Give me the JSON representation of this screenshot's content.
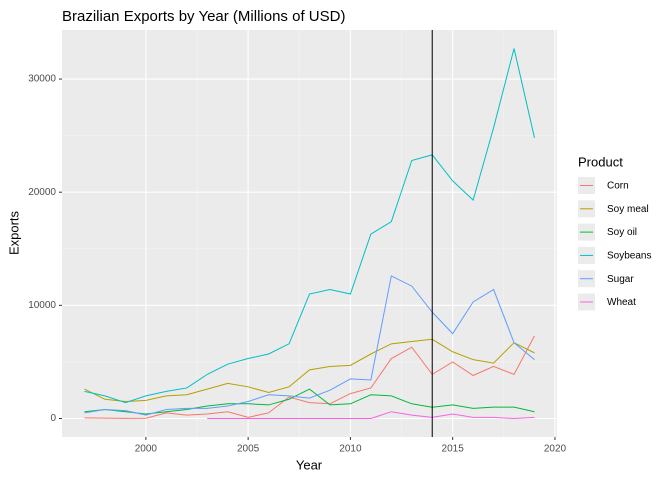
{
  "chart_data": {
    "type": "line",
    "title": "Brazilian Exports by Year (Millions of USD)",
    "x_label": "Year",
    "y_label": "Exports",
    "legend_title": "Product",
    "x": [
      1997,
      1998,
      1999,
      2000,
      2001,
      2002,
      2003,
      2004,
      2005,
      2006,
      2007,
      2008,
      2009,
      2010,
      2011,
      2012,
      2013,
      2014,
      2015,
      2016,
      2017,
      2018,
      2019
    ],
    "series": [
      {
        "name": "Corn",
        "color": "#F8766D",
        "values": [
          50,
          30,
          10,
          20,
          500,
          300,
          400,
          600,
          100,
          500,
          1900,
          1400,
          1300,
          2200,
          2700,
          5300,
          6300,
          3900,
          5000,
          3800,
          4600,
          3900,
          7300
        ]
      },
      {
        "name": "Soy meal",
        "color": "#B79F00",
        "values": [
          2600,
          1700,
          1500,
          1600,
          2000,
          2100,
          2600,
          3100,
          2800,
          2300,
          2800,
          4300,
          4600,
          4700,
          5700,
          6600,
          6800,
          7000,
          5900,
          5200,
          4900,
          6700,
          5800
        ]
      },
      {
        "name": "Soy oil",
        "color": "#00BA38",
        "values": [
          600,
          800,
          600,
          400,
          600,
          800,
          1100,
          1300,
          1300,
          1200,
          1700,
          2600,
          1200,
          1300,
          2100,
          2000,
          1300,
          1000,
          1200,
          900,
          1000,
          1000,
          600
        ]
      },
      {
        "name": "Soybeans",
        "color": "#00BFC4",
        "values": [
          2400,
          2000,
          1400,
          2000,
          2400,
          2700,
          3900,
          4800,
          5300,
          5700,
          6600,
          11000,
          11400,
          11000,
          16300,
          17400,
          22800,
          23300,
          21000,
          19300,
          25700,
          32700,
          24800
        ]
      },
      {
        "name": "Sugar",
        "color": "#619CFF",
        "values": [
          500,
          800,
          700,
          300,
          800,
          900,
          900,
          1100,
          1500,
          2100,
          2000,
          1800,
          2500,
          3500,
          3400,
          12600,
          11700,
          9400,
          7500,
          10300,
          11400,
          6700,
          5200
        ]
      },
      {
        "name": "Wheat",
        "color": "#F564E3",
        "values": [
          null,
          null,
          null,
          null,
          null,
          null,
          0,
          0,
          0,
          0,
          0,
          0,
          0,
          0,
          0,
          600,
          300,
          100,
          400,
          100,
          100,
          0,
          100
        ]
      }
    ],
    "xlim": [
      1995.9,
      2020.1
    ],
    "xticks": [
      2000,
      2005,
      2010,
      2015,
      2020
    ],
    "ylim": [
      -1635,
      34335
    ],
    "yticks": [
      0,
      10000,
      20000,
      30000
    ],
    "vline": 2014,
    "vline_color": "#000000",
    "grid": true,
    "legend": "right"
  }
}
